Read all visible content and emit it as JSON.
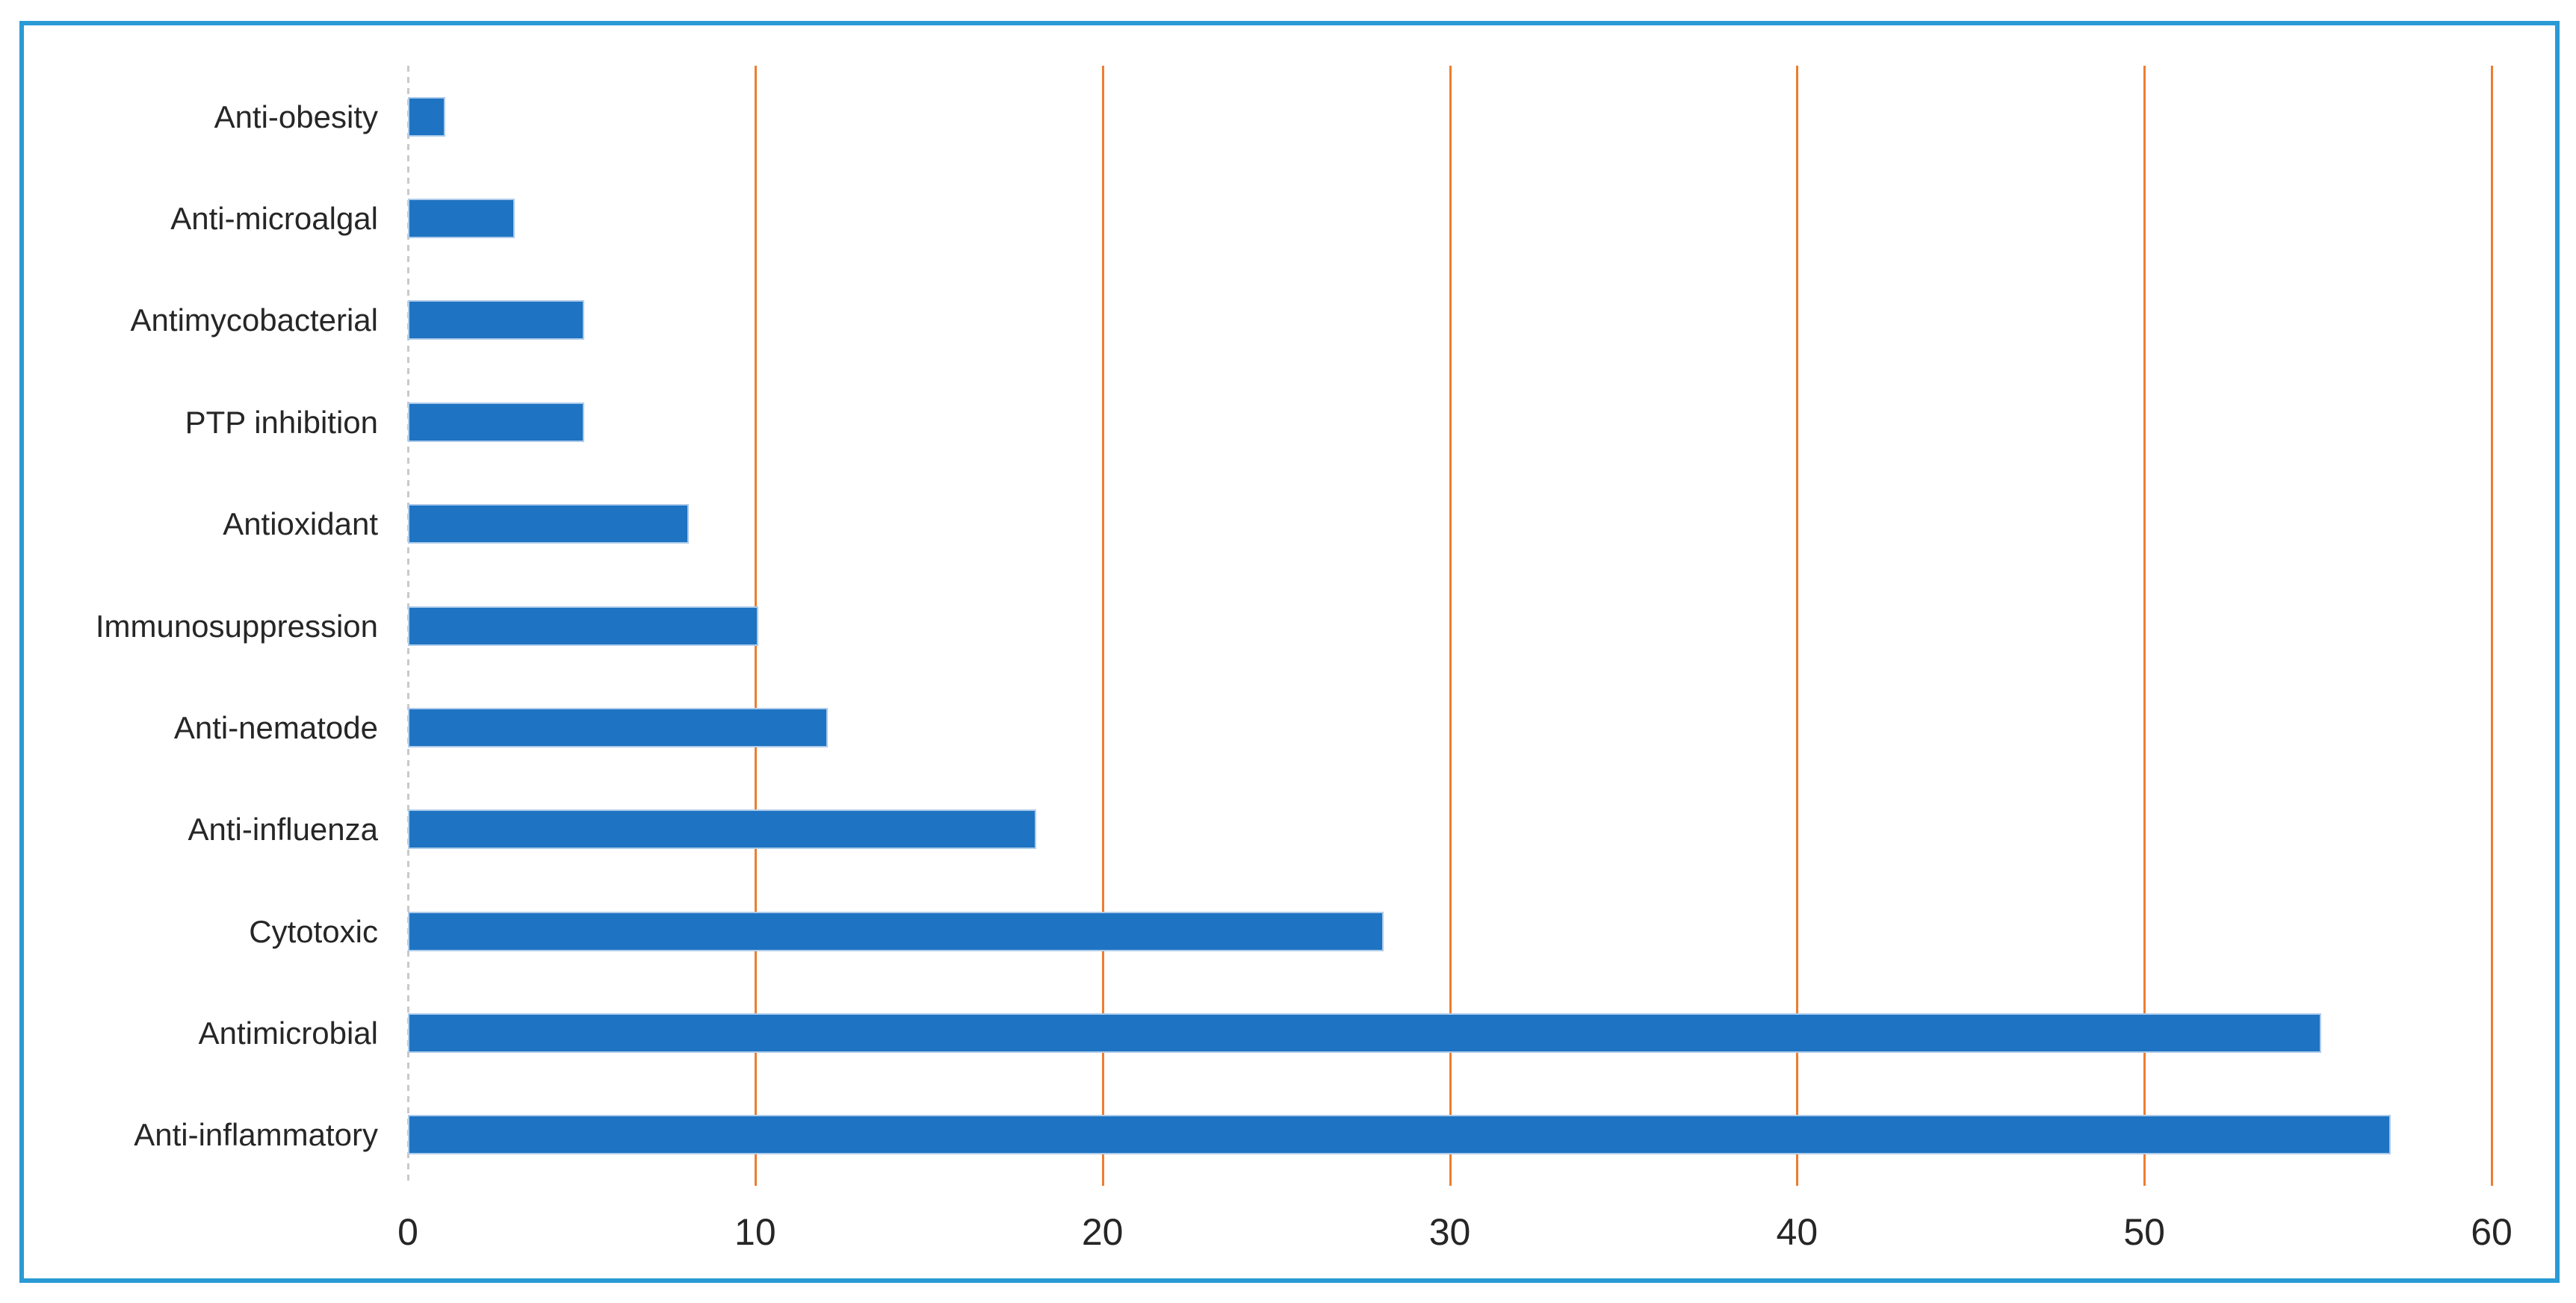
{
  "colors": {
    "bar": "#1e73c2",
    "bar_edge": "#aecbea",
    "gridline": "#ed7d31",
    "zero_axis": "#c9c9c9",
    "frame_border": "#2a9ad5",
    "text": "#262626",
    "background": "#ffffff"
  },
  "chart_data": {
    "type": "bar",
    "orientation": "horizontal",
    "title": "",
    "xlabel": "",
    "ylabel": "",
    "legend": null,
    "grid": true,
    "gridline_axis": "x",
    "xlim": [
      0,
      60
    ],
    "xticks": [
      "0",
      "10",
      "20",
      "30",
      "40",
      "50",
      "60"
    ],
    "xtick_values": [
      0,
      10,
      20,
      30,
      40,
      50,
      60
    ],
    "categories": [
      "Anti-obesity",
      "Anti-microalgal",
      "Antimycobacterial",
      "PTP inhibition",
      "Antioxidant",
      "Immunosuppression",
      "Anti-nematode",
      "Anti-influenza",
      "Cytotoxic",
      "Antimicrobial",
      "Anti-inflammatory"
    ],
    "values": [
      1,
      3,
      5,
      5,
      8,
      10,
      12,
      18,
      28,
      55,
      57
    ]
  }
}
